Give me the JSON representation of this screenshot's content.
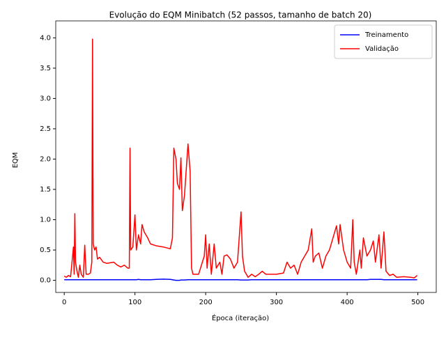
{
  "chart_data": {
    "type": "line",
    "title": "Evolução do EQM Minibatch (52 passos, tamanho de batch 20)",
    "x_label": "Época (iteração)",
    "y_label": "EQM",
    "x": [
      0,
      3,
      6,
      9,
      11,
      13,
      14,
      15,
      16,
      18,
      20,
      22,
      24,
      27,
      29,
      31,
      34,
      37,
      39,
      40,
      41,
      43,
      45,
      47,
      50,
      55,
      60,
      70,
      75,
      80,
      85,
      90,
      92,
      93,
      94,
      97,
      100,
      102,
      105,
      108,
      110,
      113,
      118,
      122,
      130,
      140,
      150,
      153,
      155,
      158,
      160,
      163,
      165,
      167,
      170,
      175,
      178,
      180,
      182,
      190,
      198,
      200,
      202,
      205,
      208,
      212,
      215,
      220,
      223,
      226,
      230,
      235,
      240,
      245,
      250,
      252,
      255,
      260,
      265,
      270,
      275,
      280,
      285,
      300,
      310,
      315,
      320,
      325,
      330,
      335,
      340,
      345,
      350,
      352,
      355,
      360,
      365,
      370,
      375,
      380,
      385,
      388,
      390,
      395,
      400,
      405,
      408,
      410,
      413,
      418,
      420,
      423,
      428,
      433,
      437,
      440,
      445,
      448,
      452,
      455,
      460,
      465,
      470,
      480,
      490,
      495,
      499
    ],
    "series": [
      {
        "name": "Treinamento",
        "color": "#0000ff",
        "values": [
          0.01,
          0.01,
          0.01,
          0.01,
          0.01,
          0.01,
          0.01,
          0.01,
          0.01,
          0.01,
          0.01,
          0.01,
          0.01,
          0.01,
          0.01,
          0.01,
          0.01,
          0.01,
          0.01,
          0.01,
          0.01,
          0.01,
          0.01,
          0.01,
          0.01,
          0.01,
          0.01,
          0.01,
          0.01,
          0.01,
          0.01,
          0.01,
          0.01,
          0.01,
          0.01,
          0.01,
          0.01,
          0.01,
          0.015,
          0.01,
          0.01,
          0.01,
          0.01,
          0.01,
          0.015,
          0.02,
          0.015,
          0.01,
          0.005,
          0.0,
          0.0,
          0.0,
          0.005,
          0.005,
          0.005,
          0.01,
          0.01,
          0.01,
          0.01,
          0.01,
          0.01,
          0.01,
          0.01,
          0.01,
          0.01,
          0.01,
          0.01,
          0.01,
          0.01,
          0.01,
          0.01,
          0.01,
          0.01,
          0.01,
          0.005,
          0.005,
          0.005,
          0.005,
          0.01,
          0.01,
          0.01,
          0.01,
          0.01,
          0.01,
          0.01,
          0.01,
          0.01,
          0.01,
          0.01,
          0.01,
          0.01,
          0.01,
          0.01,
          0.01,
          0.01,
          0.01,
          0.01,
          0.01,
          0.01,
          0.01,
          0.01,
          0.01,
          0.01,
          0.01,
          0.01,
          0.01,
          0.01,
          0.01,
          0.01,
          0.01,
          0.01,
          0.01,
          0.01,
          0.015,
          0.015,
          0.015,
          0.015,
          0.015,
          0.01,
          0.01,
          0.01,
          0.01,
          0.01,
          0.01,
          0.01,
          0.01,
          0.01
        ]
      },
      {
        "name": "Validação",
        "color": "#ff0000",
        "values": [
          0.07,
          0.05,
          0.08,
          0.06,
          0.3,
          0.55,
          0.1,
          1.1,
          0.3,
          0.15,
          0.05,
          0.25,
          0.1,
          0.05,
          0.58,
          0.1,
          0.1,
          0.12,
          0.3,
          3.98,
          0.6,
          0.5,
          0.55,
          0.35,
          0.38,
          0.3,
          0.28,
          0.3,
          0.25,
          0.22,
          0.25,
          0.2,
          0.2,
          2.18,
          0.5,
          0.55,
          1.08,
          0.5,
          0.75,
          0.6,
          0.92,
          0.8,
          0.7,
          0.6,
          0.57,
          0.55,
          0.52,
          0.7,
          2.18,
          2.0,
          1.6,
          1.5,
          2.02,
          1.15,
          1.4,
          2.25,
          1.8,
          0.2,
          0.1,
          0.1,
          0.4,
          0.75,
          0.2,
          0.6,
          0.1,
          0.6,
          0.2,
          0.3,
          0.1,
          0.4,
          0.42,
          0.35,
          0.2,
          0.3,
          1.13,
          0.4,
          0.15,
          0.05,
          0.1,
          0.06,
          0.1,
          0.15,
          0.1,
          0.1,
          0.12,
          0.3,
          0.2,
          0.25,
          0.1,
          0.3,
          0.4,
          0.5,
          0.85,
          0.3,
          0.4,
          0.45,
          0.2,
          0.4,
          0.5,
          0.7,
          0.9,
          0.6,
          0.92,
          0.5,
          0.3,
          0.2,
          1.0,
          0.3,
          0.1,
          0.5,
          0.2,
          0.7,
          0.4,
          0.5,
          0.65,
          0.3,
          0.75,
          0.2,
          0.8,
          0.15,
          0.08,
          0.1,
          0.05,
          0.06,
          0.05,
          0.04,
          0.08
        ]
      }
    ],
    "xlim": [
      -12,
      526
    ],
    "ylim": [
      -0.2,
      4.28
    ],
    "xticks": [
      0,
      100,
      200,
      300,
      400,
      500
    ],
    "yticks": [
      {
        "value": 0,
        "label": "0.0"
      },
      0.5,
      {
        "value": 1,
        "label": "1.0"
      },
      1.5,
      {
        "value": 2,
        "label": "2.0"
      },
      2.5,
      {
        "value": 3,
        "label": "3.0"
      },
      3.5,
      {
        "value": 4,
        "label": "4.0"
      }
    ],
    "legend": "upper right",
    "grid": false
  }
}
